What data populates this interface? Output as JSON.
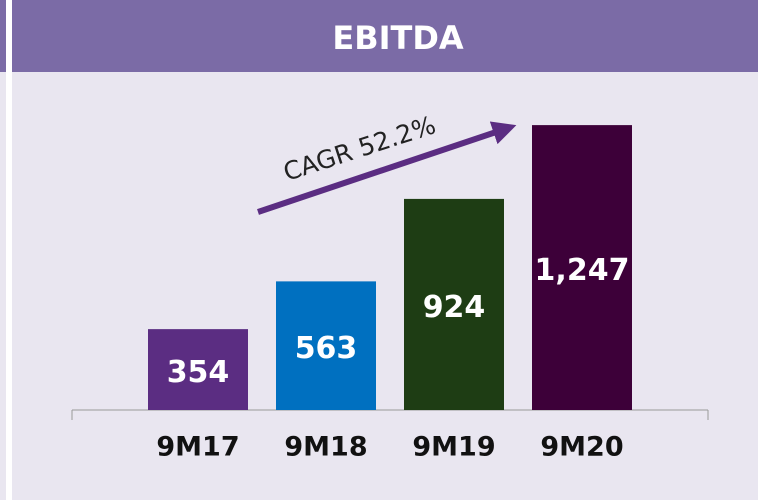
{
  "chart_data": {
    "type": "bar",
    "title": "EBITDA",
    "annotation": "CAGR 52.2%",
    "categories": [
      "9M17",
      "9M18",
      "9M19",
      "9M20"
    ],
    "values": [
      354,
      563,
      924,
      1247
    ],
    "value_labels": [
      "354",
      "563",
      "924",
      "1,247"
    ],
    "colors": [
      "#5b2d82",
      "#0070c0",
      "#1e3d14",
      "#3d0039"
    ],
    "ylim": [
      0,
      1300
    ]
  }
}
